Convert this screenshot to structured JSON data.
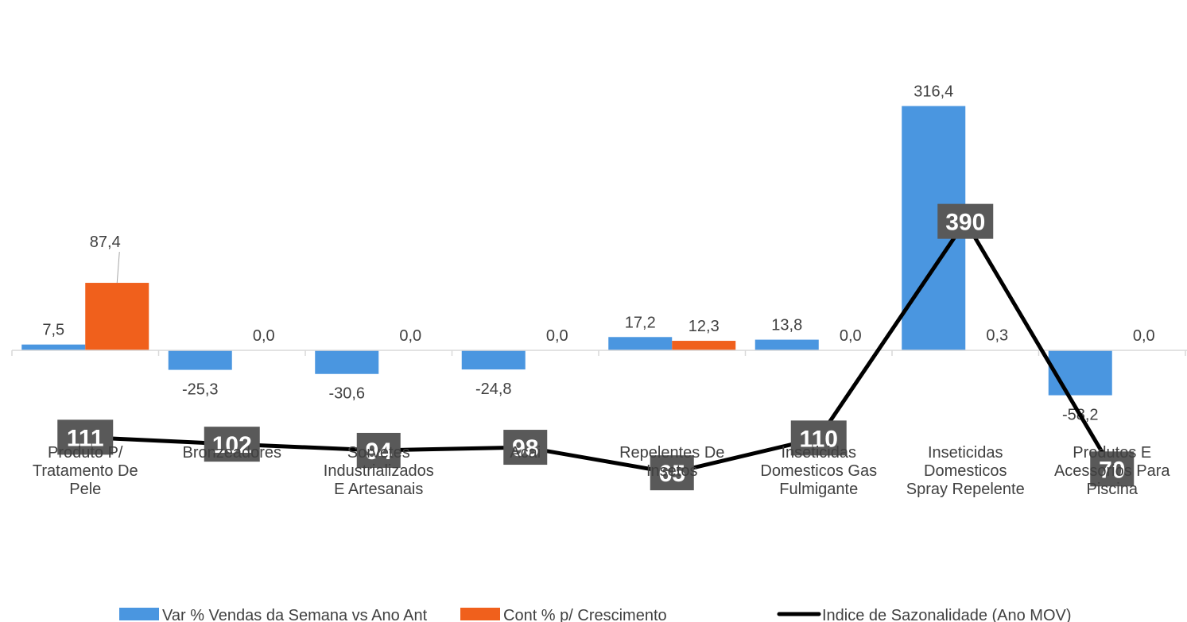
{
  "chart_data": {
    "type": "bar",
    "categories": [
      [
        "Produto P/",
        "Tratamento De",
        "Pele"
      ],
      [
        "Bronzeadores"
      ],
      [
        "Sorvetes",
        "Industrializados",
        "E Artesanais"
      ],
      [
        "Acai"
      ],
      [
        "Repelentes De",
        "Insetos"
      ],
      [
        "Inseticidas",
        "Domesticos Gas",
        "Fulmigante"
      ],
      [
        "Inseticidas",
        "Domesticos",
        "Spray Repelente"
      ],
      [
        "Produtos E",
        "Acessorios Para",
        "Piscina"
      ]
    ],
    "series": [
      {
        "name": "Var % Vendas da Semana vs Ano Ant",
        "kind": "bar",
        "color": "#4A96E0",
        "values": [
          7.5,
          -25.3,
          -30.6,
          -24.8,
          17.2,
          13.8,
          316.4,
          -58.2
        ],
        "labels": [
          "7,5",
          "-25,3",
          "-30,6",
          "-24,8",
          "17,2",
          "13,8",
          "316,4",
          "-58,2"
        ]
      },
      {
        "name": "Cont % p/ Crescimento",
        "kind": "bar",
        "color": "#F0601C",
        "values": [
          87.4,
          0.0,
          0.0,
          0.0,
          12.3,
          0.0,
          0.3,
          0.0
        ],
        "labels": [
          "87,4",
          "0,0",
          "0,0",
          "0,0",
          "12,3",
          "0,0",
          "0,3",
          "0,0"
        ]
      },
      {
        "name": "Indice de Sazonalidade (Ano MOV)",
        "kind": "line",
        "color": "#000000",
        "values": [
          111,
          102,
          94,
          98,
          65,
          110,
          390,
          70
        ],
        "labels": [
          "111",
          "102",
          "94",
          "98",
          "65",
          "110",
          "390",
          "70"
        ]
      }
    ],
    "label_box_color": "#595959",
    "legend_position": "bottom",
    "grid": false
  }
}
